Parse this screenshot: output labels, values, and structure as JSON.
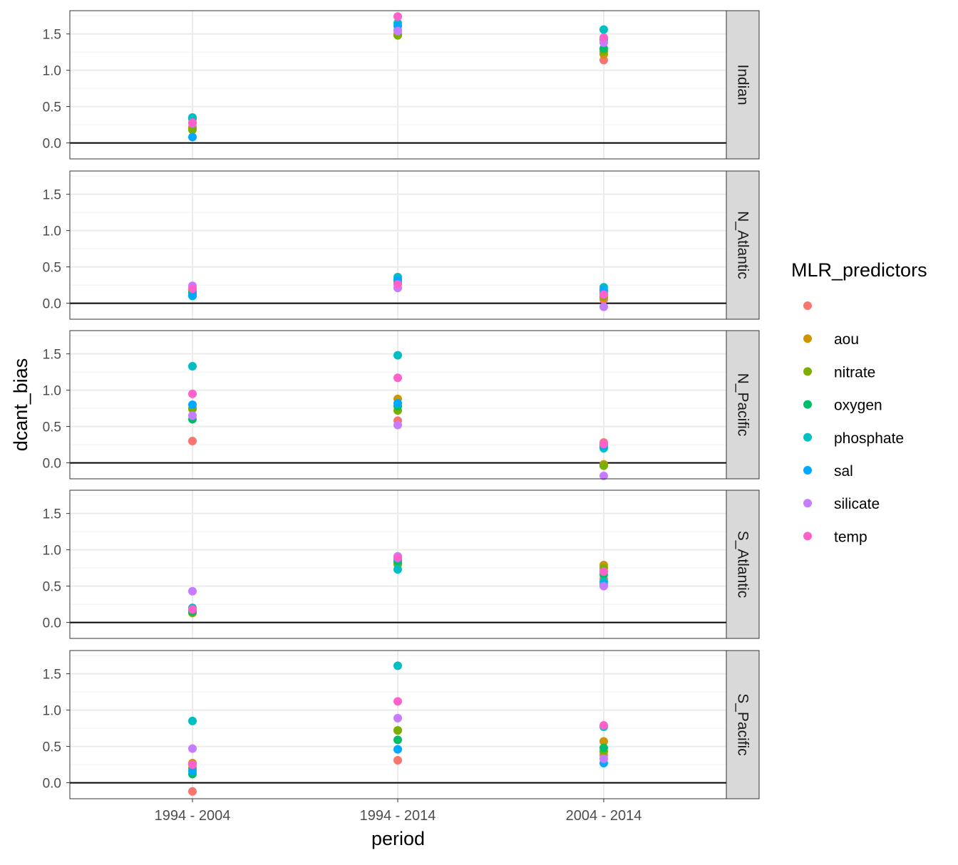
{
  "chart_data": {
    "type": "scatter",
    "facet_by": "basin",
    "xlabel": "period",
    "ylabel": "dcant_bias",
    "categories": [
      "1994 - 2004",
      "1994 - 2014",
      "2004 - 2014"
    ],
    "ylim": [
      -0.22,
      1.82
    ],
    "y_ticks": [
      "0.0",
      "0.5",
      "1.0",
      "1.5"
    ],
    "y_tick_values": [
      0.0,
      0.5,
      1.0,
      1.5
    ],
    "hline": 0,
    "grid": true,
    "legend": {
      "title": "MLR_predictors",
      "position": "right",
      "entries": [
        {
          "label": "",
          "color": "#F8766D"
        },
        {
          "label": "aou",
          "color": "#CD9600"
        },
        {
          "label": "nitrate",
          "color": "#7CAE00"
        },
        {
          "label": "oxygen",
          "color": "#00BE67"
        },
        {
          "label": "phosphate",
          "color": "#00BFC4"
        },
        {
          "label": "sal",
          "color": "#00A9FF"
        },
        {
          "label": "silicate",
          "color": "#C77CFF"
        },
        {
          "label": "temp",
          "color": "#FF61CC"
        }
      ]
    },
    "facets": [
      {
        "name": "Indian",
        "series": [
          {
            "name": "",
            "values": [
              0.22,
              1.5,
              1.14
            ]
          },
          {
            "name": "aou",
            "values": [
              0.2,
              1.49,
              1.22
            ]
          },
          {
            "name": "nitrate",
            "values": [
              0.18,
              1.48,
              1.26
            ]
          },
          {
            "name": "oxygen",
            "values": [
              0.33,
              1.55,
              1.3
            ]
          },
          {
            "name": "phosphate",
            "values": [
              0.35,
              1.65,
              1.56
            ]
          },
          {
            "name": "sal",
            "values": [
              0.08,
              1.61,
              1.42
            ]
          },
          {
            "name": "silicate",
            "values": [
              0.27,
              1.54,
              1.38
            ]
          },
          {
            "name": "temp",
            "values": [
              0.28,
              1.74,
              1.45
            ]
          }
        ]
      },
      {
        "name": "N_Atlantic",
        "series": [
          {
            "name": "",
            "values": [
              0.12,
              0.3,
              0.05
            ]
          },
          {
            "name": "aou",
            "values": [
              0.15,
              0.31,
              0.08
            ]
          },
          {
            "name": "nitrate",
            "values": [
              0.17,
              0.28,
              0.1
            ]
          },
          {
            "name": "oxygen",
            "values": [
              0.14,
              0.33,
              0.14
            ]
          },
          {
            "name": "phosphate",
            "values": [
              0.1,
              0.36,
              0.22
            ]
          },
          {
            "name": "sal",
            "values": [
              0.11,
              0.32,
              0.18
            ]
          },
          {
            "name": "silicate",
            "values": [
              0.24,
              0.21,
              -0.05
            ]
          },
          {
            "name": "temp",
            "values": [
              0.2,
              0.26,
              0.12
            ]
          }
        ]
      },
      {
        "name": "N_Pacific",
        "series": [
          {
            "name": "",
            "values": [
              0.3,
              0.58,
              0.28
            ]
          },
          {
            "name": "aou",
            "values": [
              0.74,
              0.88,
              -0.02
            ]
          },
          {
            "name": "nitrate",
            "values": [
              0.75,
              0.72,
              -0.04
            ]
          },
          {
            "name": "oxygen",
            "values": [
              0.6,
              0.78,
              0.22
            ]
          },
          {
            "name": "phosphate",
            "values": [
              1.33,
              1.48,
              0.2
            ]
          },
          {
            "name": "sal",
            "values": [
              0.8,
              0.82,
              0.24
            ]
          },
          {
            "name": "silicate",
            "values": [
              0.65,
              0.52,
              -0.18
            ]
          },
          {
            "name": "temp",
            "values": [
              0.95,
              1.17,
              0.26
            ]
          }
        ]
      },
      {
        "name": "S_Atlantic",
        "series": [
          {
            "name": "",
            "values": [
              0.15,
              0.85,
              0.6
            ]
          },
          {
            "name": "aou",
            "values": [
              0.16,
              0.83,
              0.79
            ]
          },
          {
            "name": "nitrate",
            "values": [
              0.13,
              0.8,
              0.75
            ]
          },
          {
            "name": "oxygen",
            "values": [
              0.15,
              0.84,
              0.66
            ]
          },
          {
            "name": "phosphate",
            "values": [
              0.2,
              0.73,
              0.56
            ]
          },
          {
            "name": "sal",
            "values": [
              0.18,
              0.88,
              0.52
            ]
          },
          {
            "name": "silicate",
            "values": [
              0.43,
              0.91,
              0.5
            ]
          },
          {
            "name": "temp",
            "values": [
              0.18,
              0.89,
              0.7
            ]
          }
        ]
      },
      {
        "name": "S_Pacific",
        "series": [
          {
            "name": "",
            "values": [
              -0.12,
              0.31,
              0.38
            ]
          },
          {
            "name": "aou",
            "values": [
              0.27,
              0.72,
              0.57
            ]
          },
          {
            "name": "nitrate",
            "values": [
              0.2,
              0.72,
              0.43
            ]
          },
          {
            "name": "oxygen",
            "values": [
              0.12,
              0.59,
              0.48
            ]
          },
          {
            "name": "phosphate",
            "values": [
              0.85,
              1.61,
              0.77
            ]
          },
          {
            "name": "sal",
            "values": [
              0.16,
              0.46,
              0.27
            ]
          },
          {
            "name": "silicate",
            "values": [
              0.47,
              0.89,
              0.33
            ]
          },
          {
            "name": "temp",
            "values": [
              0.25,
              1.12,
              0.79
            ]
          }
        ]
      }
    ]
  }
}
